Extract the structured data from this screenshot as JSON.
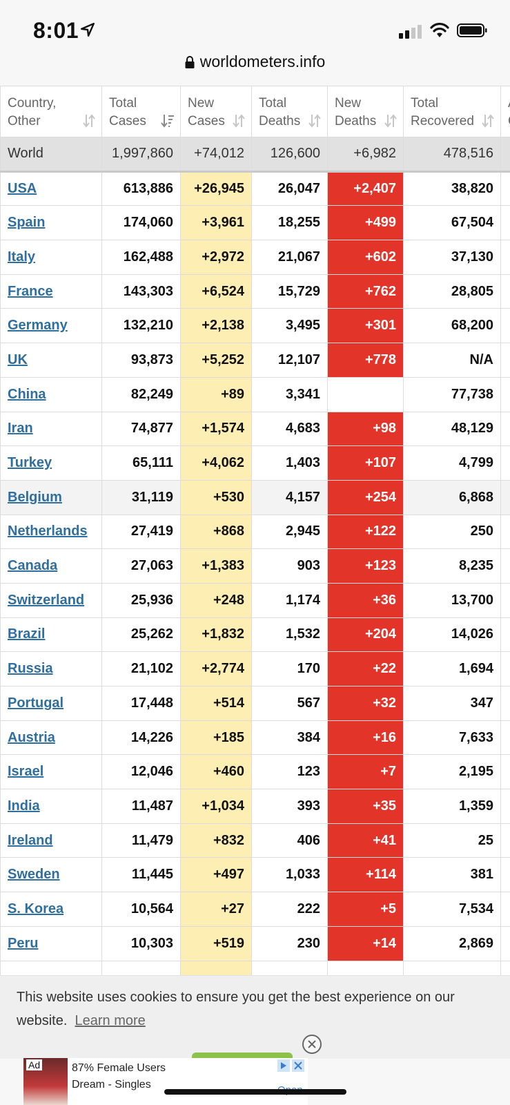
{
  "status_bar": {
    "time": "8:01"
  },
  "url": "worldometers.info",
  "table": {
    "headers": [
      [
        "Country,",
        "Other"
      ],
      [
        "Total",
        "Cases"
      ],
      [
        "New",
        "Cases"
      ],
      [
        "Total",
        "Deaths"
      ],
      [
        "New",
        "Deaths"
      ],
      [
        "Total",
        "Recovered"
      ],
      [
        "A",
        "C"
      ]
    ],
    "world": [
      "World",
      "1,997,860",
      "+74,012",
      "126,600",
      "+6,982",
      "478,516"
    ],
    "rows": [
      [
        "USA",
        "613,886",
        "+26,945",
        "26,047",
        "+2,407",
        "38,820"
      ],
      [
        "Spain",
        "174,060",
        "+3,961",
        "18,255",
        "+499",
        "67,504"
      ],
      [
        "Italy",
        "162,488",
        "+2,972",
        "21,067",
        "+602",
        "37,130"
      ],
      [
        "France",
        "143,303",
        "+6,524",
        "15,729",
        "+762",
        "28,805"
      ],
      [
        "Germany",
        "132,210",
        "+2,138",
        "3,495",
        "+301",
        "68,200"
      ],
      [
        "UK",
        "93,873",
        "+5,252",
        "12,107",
        "+778",
        "N/A"
      ],
      [
        "China",
        "82,249",
        "+89",
        "3,341",
        "",
        "77,738"
      ],
      [
        "Iran",
        "74,877",
        "+1,574",
        "4,683",
        "+98",
        "48,129"
      ],
      [
        "Turkey",
        "65,111",
        "+4,062",
        "1,403",
        "+107",
        "4,799"
      ],
      [
        "Belgium",
        "31,119",
        "+530",
        "4,157",
        "+254",
        "6,868"
      ],
      [
        "Netherlands",
        "27,419",
        "+868",
        "2,945",
        "+122",
        "250"
      ],
      [
        "Canada",
        "27,063",
        "+1,383",
        "903",
        "+123",
        "8,235"
      ],
      [
        "Switzerland",
        "25,936",
        "+248",
        "1,174",
        "+36",
        "13,700"
      ],
      [
        "Brazil",
        "25,262",
        "+1,832",
        "1,532",
        "+204",
        "14,026"
      ],
      [
        "Russia",
        "21,102",
        "+2,774",
        "170",
        "+22",
        "1,694"
      ],
      [
        "Portugal",
        "17,448",
        "+514",
        "567",
        "+32",
        "347"
      ],
      [
        "Austria",
        "14,226",
        "+185",
        "384",
        "+16",
        "7,633"
      ],
      [
        "Israel",
        "12,046",
        "+460",
        "123",
        "+7",
        "2,195"
      ],
      [
        "India",
        "11,487",
        "+1,034",
        "393",
        "+35",
        "1,359"
      ],
      [
        "Ireland",
        "11,479",
        "+832",
        "406",
        "+41",
        "25"
      ],
      [
        "Sweden",
        "11,445",
        "+497",
        "1,033",
        "+114",
        "381"
      ],
      [
        "S. Korea",
        "10,564",
        "+27",
        "222",
        "+5",
        "7,534"
      ],
      [
        "Peru",
        "10,303",
        "+519",
        "230",
        "+14",
        "2,869"
      ],
      [
        "",
        "",
        "",
        "",
        "",
        ""
      ]
    ]
  },
  "cookie": {
    "message": "This website uses cookies to ensure you get the best experience on our website.",
    "link": "Learn more"
  },
  "ad": {
    "tag": "Ad",
    "line1": "87% Female Users",
    "line2": "Dream - Singles",
    "cta": "Open"
  },
  "colors": {
    "link": "#2f6fa0",
    "new_cases_bg": "#fdeeb4",
    "new_deaths_bg": "#e3342a"
  }
}
